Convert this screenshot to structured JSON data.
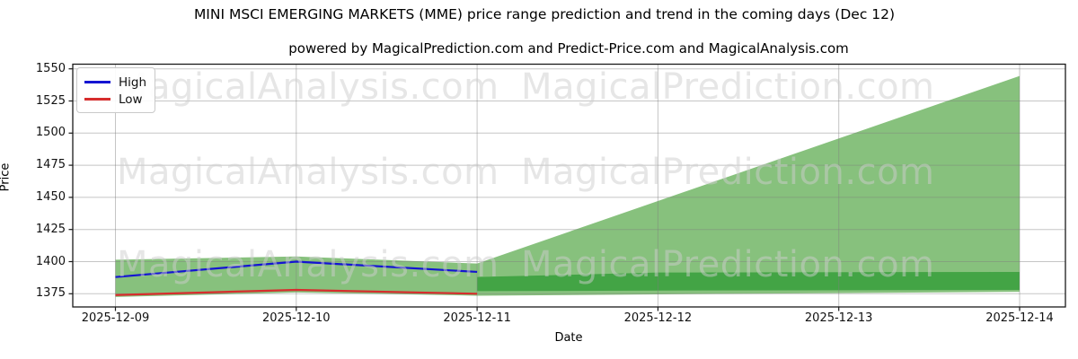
{
  "chart_data": {
    "type": "line",
    "title": "MINI MSCI EMERGING MARKETS (MME) price range prediction and trend in the coming days (Dec 12)",
    "subtitle": "powered by MagicalPrediction.com and Predict-Price.com and MagicalAnalysis.com",
    "xlabel": "Date",
    "ylabel": "Price",
    "categories": [
      "2025-12-09",
      "2025-12-10",
      "2025-12-11",
      "2025-12-12",
      "2025-12-13",
      "2025-12-14"
    ],
    "y_ticks": [
      1375,
      1400,
      1425,
      1450,
      1475,
      1500,
      1525,
      1550
    ],
    "ylim": [
      1364.7,
      1553.5
    ],
    "grid": true,
    "legend": {
      "position": "upper-left",
      "entries": [
        "High",
        "Low"
      ]
    },
    "series": [
      {
        "name": "High",
        "color": "#1414d2",
        "x_idx": [
          0,
          1,
          2
        ],
        "values": [
          1388,
          1400,
          1392
        ]
      },
      {
        "name": "Low",
        "color": "#d72d2d",
        "x_idx": [
          0,
          1,
          2
        ],
        "values": [
          1374,
          1378,
          1375
        ]
      }
    ],
    "bands": [
      {
        "name": "historical-range",
        "color": "#87c17d",
        "x_idx": [
          0,
          1,
          2
        ],
        "top": [
          1401.5,
          1404,
          1398.5
        ],
        "bottom": [
          1372.5,
          1376,
          1373.5
        ]
      },
      {
        "name": "forecast-fan",
        "color": "#87c17d",
        "x_idx": [
          2,
          5
        ],
        "top": [
          1398.5,
          1544.5
        ],
        "bottom": [
          1373.5,
          1376.5
        ]
      },
      {
        "name": "forecast-overlap-band",
        "color": "#43a445",
        "x_idx": [
          2,
          3,
          5
        ],
        "top": [
          1388,
          1391.5,
          1392
        ],
        "bottom": [
          1377,
          1377.5,
          1378
        ]
      }
    ],
    "watermark_texts": [
      "MagicalAnalysis.com",
      "MagicalPrediction.com"
    ]
  }
}
